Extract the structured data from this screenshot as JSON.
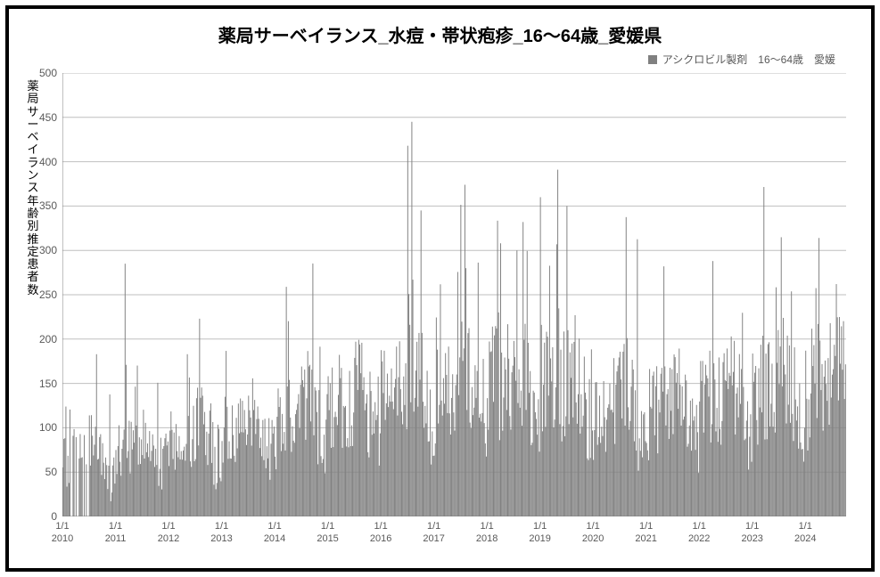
{
  "chart": {
    "type": "bar",
    "title": "薬局サーベイランス_水痘・帯状疱疹_16～64歳_愛媛県",
    "title_fontsize": 20,
    "title_fontweight": "bold",
    "legend": {
      "label": "アシクロビル製剤　16～64歳　愛媛",
      "swatch_color": "#808080",
      "fontsize": 12,
      "position": "top-right"
    },
    "ylabel": "薬局サーベイランス年齢別推定患者数",
    "ylabel_fontsize": 13,
    "y_axis": {
      "min": 0,
      "max": 500,
      "tick_step": 50,
      "label_fontsize": 12,
      "label_color": "#595959"
    },
    "x_axis": {
      "start_year": 2010,
      "end_year": 2024,
      "tick_label_top": "1/1",
      "tick_years": [
        2010,
        2011,
        2012,
        2013,
        2014,
        2015,
        2016,
        2017,
        2018,
        2019,
        2020,
        2021,
        2022,
        2023,
        2024
      ],
      "label_fontsize": 11,
      "label_color": "#595959"
    },
    "grid": {
      "color": "#bfbfbf",
      "width": 1
    },
    "axis_line_color": "#808080",
    "background_color": "#ffffff",
    "frame_border_color": "#000000",
    "frame_border_width": 4,
    "bar_color": "#808080",
    "bar_gap_ratio": 0.15,
    "weeks_total": 760,
    "series": {
      "name": "アシクロビル製剤 16～64歳 愛媛",
      "yearly_baseline": {
        "2010": 70,
        "2011": 80,
        "2012": 90,
        "2013": 100,
        "2014": 115,
        "2015": 125,
        "2016": 140,
        "2017": 140,
        "2018": 150,
        "2019": 145,
        "2020": 125,
        "2021": 120,
        "2022": 130,
        "2023": 140,
        "2024": 150
      },
      "notable_peaks": [
        {
          "approx_date": "2011-03",
          "value": 285
        },
        {
          "approx_date": "2012-08",
          "value": 223
        },
        {
          "approx_date": "2016-08",
          "value": 445
        },
        {
          "approx_date": "2016-07",
          "value": 418
        },
        {
          "approx_date": "2016-10",
          "value": 345
        },
        {
          "approx_date": "2017-08",
          "value": 374
        },
        {
          "approx_date": "2018-04",
          "value": 308
        },
        {
          "approx_date": "2018-09",
          "value": 332
        },
        {
          "approx_date": "2019-01",
          "value": 360
        },
        {
          "approx_date": "2019-05",
          "value": 391
        },
        {
          "approx_date": "2019-07",
          "value": 350
        },
        {
          "approx_date": "2021-05",
          "value": 282
        },
        {
          "approx_date": "2022-04",
          "value": 288
        },
        {
          "approx_date": "2024-04",
          "value": 314
        },
        {
          "approx_date": "2024-08",
          "value": 262
        }
      ],
      "typical_weekly_range_low": 40,
      "typical_weekly_range_high": 200
    }
  }
}
